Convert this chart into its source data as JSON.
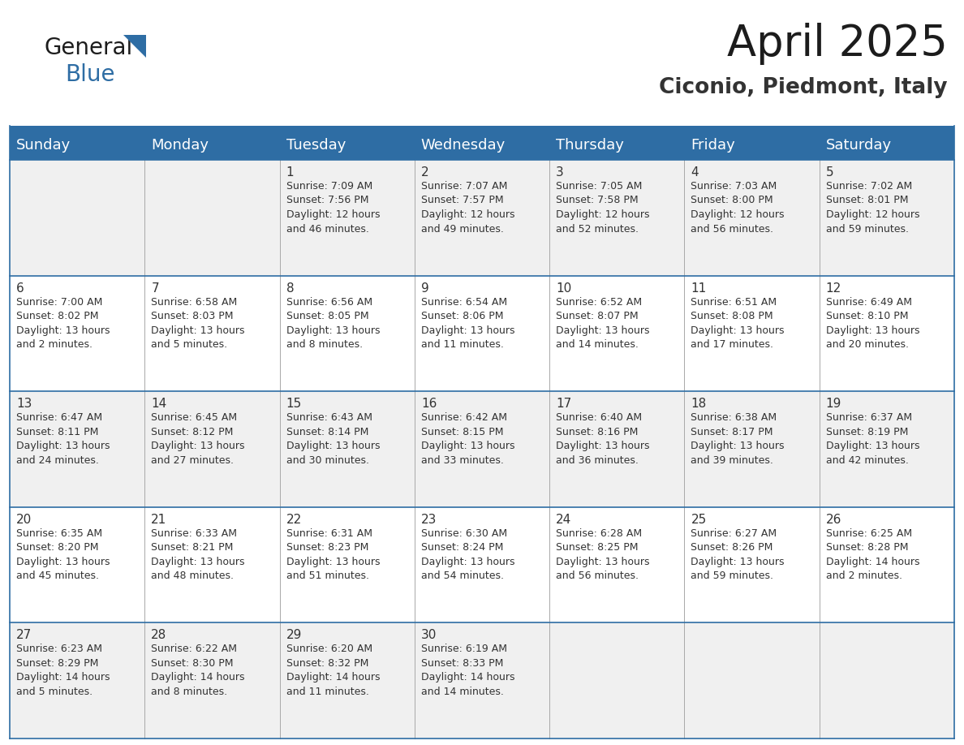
{
  "title": "April 2025",
  "subtitle": "Ciconio, Piedmont, Italy",
  "header_bg_color": "#2E6DA4",
  "header_text_color": "#FFFFFF",
  "border_color": "#2E6DA4",
  "text_color": "#333333",
  "row_bg_odd": "#F0F0F0",
  "row_bg_even": "#FFFFFF",
  "days_of_week": [
    "Sunday",
    "Monday",
    "Tuesday",
    "Wednesday",
    "Thursday",
    "Friday",
    "Saturday"
  ],
  "weeks": [
    [
      {
        "day": "",
        "info": ""
      },
      {
        "day": "",
        "info": ""
      },
      {
        "day": "1",
        "info": "Sunrise: 7:09 AM\nSunset: 7:56 PM\nDaylight: 12 hours\nand 46 minutes."
      },
      {
        "day": "2",
        "info": "Sunrise: 7:07 AM\nSunset: 7:57 PM\nDaylight: 12 hours\nand 49 minutes."
      },
      {
        "day": "3",
        "info": "Sunrise: 7:05 AM\nSunset: 7:58 PM\nDaylight: 12 hours\nand 52 minutes."
      },
      {
        "day": "4",
        "info": "Sunrise: 7:03 AM\nSunset: 8:00 PM\nDaylight: 12 hours\nand 56 minutes."
      },
      {
        "day": "5",
        "info": "Sunrise: 7:02 AM\nSunset: 8:01 PM\nDaylight: 12 hours\nand 59 minutes."
      }
    ],
    [
      {
        "day": "6",
        "info": "Sunrise: 7:00 AM\nSunset: 8:02 PM\nDaylight: 13 hours\nand 2 minutes."
      },
      {
        "day": "7",
        "info": "Sunrise: 6:58 AM\nSunset: 8:03 PM\nDaylight: 13 hours\nand 5 minutes."
      },
      {
        "day": "8",
        "info": "Sunrise: 6:56 AM\nSunset: 8:05 PM\nDaylight: 13 hours\nand 8 minutes."
      },
      {
        "day": "9",
        "info": "Sunrise: 6:54 AM\nSunset: 8:06 PM\nDaylight: 13 hours\nand 11 minutes."
      },
      {
        "day": "10",
        "info": "Sunrise: 6:52 AM\nSunset: 8:07 PM\nDaylight: 13 hours\nand 14 minutes."
      },
      {
        "day": "11",
        "info": "Sunrise: 6:51 AM\nSunset: 8:08 PM\nDaylight: 13 hours\nand 17 minutes."
      },
      {
        "day": "12",
        "info": "Sunrise: 6:49 AM\nSunset: 8:10 PM\nDaylight: 13 hours\nand 20 minutes."
      }
    ],
    [
      {
        "day": "13",
        "info": "Sunrise: 6:47 AM\nSunset: 8:11 PM\nDaylight: 13 hours\nand 24 minutes."
      },
      {
        "day": "14",
        "info": "Sunrise: 6:45 AM\nSunset: 8:12 PM\nDaylight: 13 hours\nand 27 minutes."
      },
      {
        "day": "15",
        "info": "Sunrise: 6:43 AM\nSunset: 8:14 PM\nDaylight: 13 hours\nand 30 minutes."
      },
      {
        "day": "16",
        "info": "Sunrise: 6:42 AM\nSunset: 8:15 PM\nDaylight: 13 hours\nand 33 minutes."
      },
      {
        "day": "17",
        "info": "Sunrise: 6:40 AM\nSunset: 8:16 PM\nDaylight: 13 hours\nand 36 minutes."
      },
      {
        "day": "18",
        "info": "Sunrise: 6:38 AM\nSunset: 8:17 PM\nDaylight: 13 hours\nand 39 minutes."
      },
      {
        "day": "19",
        "info": "Sunrise: 6:37 AM\nSunset: 8:19 PM\nDaylight: 13 hours\nand 42 minutes."
      }
    ],
    [
      {
        "day": "20",
        "info": "Sunrise: 6:35 AM\nSunset: 8:20 PM\nDaylight: 13 hours\nand 45 minutes."
      },
      {
        "day": "21",
        "info": "Sunrise: 6:33 AM\nSunset: 8:21 PM\nDaylight: 13 hours\nand 48 minutes."
      },
      {
        "day": "22",
        "info": "Sunrise: 6:31 AM\nSunset: 8:23 PM\nDaylight: 13 hours\nand 51 minutes."
      },
      {
        "day": "23",
        "info": "Sunrise: 6:30 AM\nSunset: 8:24 PM\nDaylight: 13 hours\nand 54 minutes."
      },
      {
        "day": "24",
        "info": "Sunrise: 6:28 AM\nSunset: 8:25 PM\nDaylight: 13 hours\nand 56 minutes."
      },
      {
        "day": "25",
        "info": "Sunrise: 6:27 AM\nSunset: 8:26 PM\nDaylight: 13 hours\nand 59 minutes."
      },
      {
        "day": "26",
        "info": "Sunrise: 6:25 AM\nSunset: 8:28 PM\nDaylight: 14 hours\nand 2 minutes."
      }
    ],
    [
      {
        "day": "27",
        "info": "Sunrise: 6:23 AM\nSunset: 8:29 PM\nDaylight: 14 hours\nand 5 minutes."
      },
      {
        "day": "28",
        "info": "Sunrise: 6:22 AM\nSunset: 8:30 PM\nDaylight: 14 hours\nand 8 minutes."
      },
      {
        "day": "29",
        "info": "Sunrise: 6:20 AM\nSunset: 8:32 PM\nDaylight: 14 hours\nand 11 minutes."
      },
      {
        "day": "30",
        "info": "Sunrise: 6:19 AM\nSunset: 8:33 PM\nDaylight: 14 hours\nand 14 minutes."
      },
      {
        "day": "",
        "info": ""
      },
      {
        "day": "",
        "info": ""
      },
      {
        "day": "",
        "info": ""
      }
    ]
  ]
}
